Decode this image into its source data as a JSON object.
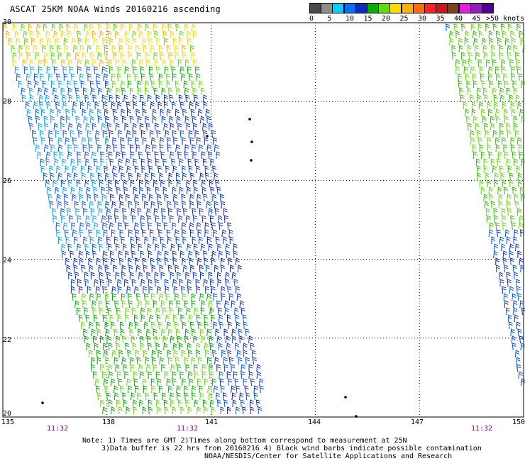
{
  "title": "ASCAT 25KM NOAA Winds 20160216 ascending",
  "legend": {
    "colors": [
      "#4a4a4a",
      "#8c8c8c",
      "#00d0ff",
      "#0070ff",
      "#1028c8",
      "#00b000",
      "#60e000",
      "#ffd800",
      "#ffb000",
      "#ff7000",
      "#ff2020",
      "#c81818",
      "#804020",
      "#e020e0",
      "#9020c0",
      "#500090"
    ],
    "labels": [
      "0",
      "5",
      "10",
      "15",
      "20",
      "25",
      "30",
      "35",
      "40",
      "45"
    ],
    "unit": ">50 knots"
  },
  "map": {
    "latitudes": [
      "30",
      "28",
      "26",
      "24",
      "22",
      "20"
    ],
    "longitudes": [
      "135",
      "138",
      "141",
      "144",
      "147",
      "150"
    ],
    "times": [
      "11:32",
      "11:32",
      "11:32"
    ]
  },
  "notes": {
    "line1": "Note: 1) Times are GMT 2)Times along bottom correspond to measurement at 25N",
    "line2": "3)Data buffer is 22 hrs from 20160216 4) Black wind barbs indicate possible contamination",
    "line3": "NOAA/NESDIS/Center for Satellite Applications and Research"
  }
}
